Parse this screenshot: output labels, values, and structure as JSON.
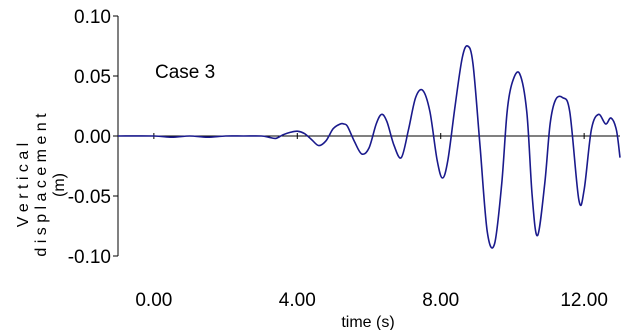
{
  "chart_data": {
    "type": "line",
    "title": "",
    "annotation": "Case 3",
    "xlabel": "time (s)",
    "ylabel_lines": [
      "V e r t i c a l",
      "d i s p l a c e m e n t",
      "(m)"
    ],
    "xlim": [
      -1.0,
      13.0
    ],
    "ylim": [
      -0.1,
      0.1
    ],
    "x_tick_values": [
      0,
      4,
      8,
      12
    ],
    "x_tick_labels": [
      "0.00",
      "4.00",
      "8.00",
      "12.00"
    ],
    "y_tick_values": [
      0.1,
      0.05,
      0.0,
      -0.05,
      -0.1
    ],
    "y_tick_labels": [
      "0.10",
      "0.05",
      "0.00",
      "-0.05",
      "-0.10"
    ],
    "grid": false,
    "legend": "none",
    "line_color": "#1a1a8c",
    "series": [
      {
        "x": [
          -1.0,
          0.0,
          0.5,
          1.0,
          1.5,
          2.0,
          2.5,
          3.0,
          3.2,
          3.4,
          3.6,
          3.8,
          4.0,
          4.2,
          4.4,
          4.6,
          4.8,
          5.0,
          5.2,
          5.3,
          5.4,
          5.6,
          5.8,
          6.0,
          6.2,
          6.35,
          6.5,
          6.7,
          6.9,
          7.1,
          7.3,
          7.5,
          7.7,
          7.9,
          8.05,
          8.2,
          8.4,
          8.6,
          8.75,
          8.9,
          9.1,
          9.3,
          9.5,
          9.7,
          9.85,
          10.0,
          10.2,
          10.4,
          10.55,
          10.7,
          10.9,
          11.05,
          11.2,
          11.4,
          11.6,
          11.85,
          12.0,
          12.2,
          12.4,
          12.6,
          12.75,
          12.9,
          13.0
        ],
        "y": [
          0.0,
          0.0,
          -0.001,
          0.0,
          -0.001,
          0.0,
          0.0,
          0.0,
          -0.001,
          -0.002,
          0.001,
          0.003,
          0.004,
          0.002,
          -0.003,
          -0.008,
          -0.004,
          0.006,
          0.01,
          0.01,
          0.008,
          -0.005,
          -0.015,
          -0.01,
          0.01,
          0.018,
          0.012,
          -0.008,
          -0.018,
          0.005,
          0.032,
          0.038,
          0.02,
          -0.02,
          -0.035,
          -0.02,
          0.025,
          0.065,
          0.075,
          0.06,
          -0.01,
          -0.08,
          -0.09,
          -0.04,
          0.02,
          0.045,
          0.052,
          0.02,
          -0.05,
          -0.083,
          -0.04,
          0.01,
          0.03,
          0.032,
          0.02,
          -0.053,
          -0.045,
          0.005,
          0.018,
          0.01,
          0.015,
          0.005,
          -0.018
        ]
      }
    ]
  }
}
